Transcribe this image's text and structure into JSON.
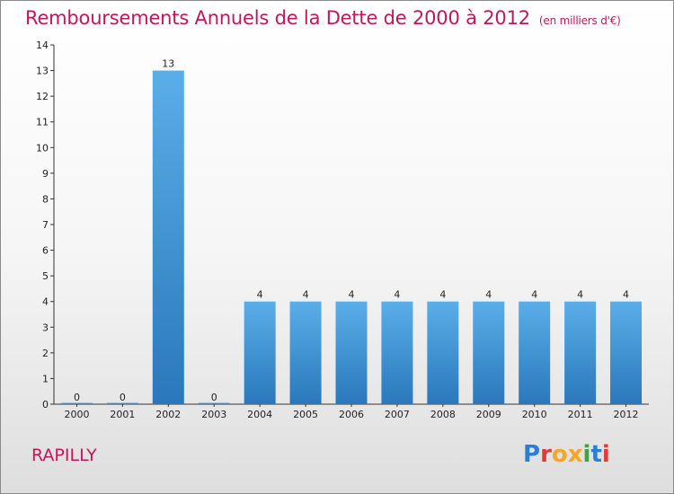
{
  "header": {
    "title": "Remboursements Annuels de la Dette de 2000 à 2012",
    "subtitle": "(en milliers d'€)"
  },
  "footer": {
    "commune": "RAPILLY",
    "logo_text": "Proxiti"
  },
  "chart_data": {
    "type": "bar",
    "title": "Remboursements Annuels de la Dette de 2000 à 2012",
    "subtitle": "(en milliers d'€)",
    "categories": [
      "2000",
      "2001",
      "2002",
      "2003",
      "2004",
      "2005",
      "2006",
      "2007",
      "2008",
      "2009",
      "2010",
      "2011",
      "2012"
    ],
    "values": [
      0,
      0,
      13,
      0,
      4,
      4,
      4,
      4,
      4,
      4,
      4,
      4,
      4
    ],
    "data_labels": [
      "0",
      "0",
      "13",
      "0",
      "4",
      "4",
      "4",
      "4",
      "4",
      "4",
      "4",
      "4",
      "4"
    ],
    "ylim": [
      0,
      14
    ],
    "yticks": [
      0,
      1,
      2,
      3,
      4,
      5,
      6,
      7,
      8,
      9,
      10,
      11,
      12,
      13,
      14
    ],
    "grid": false,
    "bar_color": "#3a8fd6",
    "title_color": "#c2185b"
  }
}
